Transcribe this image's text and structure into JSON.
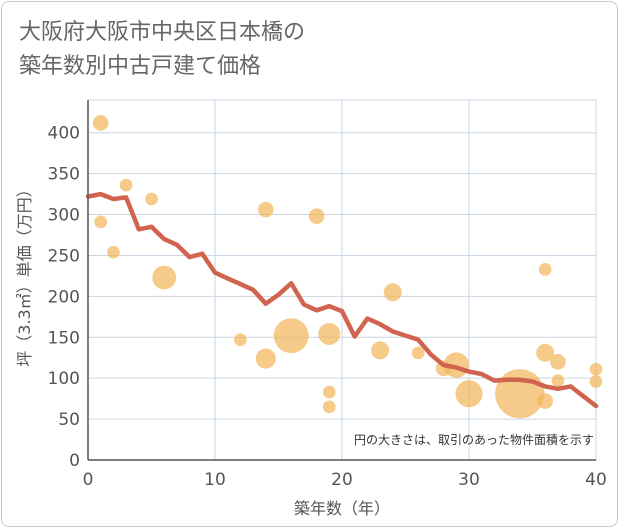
{
  "title_line1": "大阪府大阪市中央区日本橋の",
  "title_line2": "築年数別中古戸建て価格",
  "chart_data": {
    "type": "scatter",
    "title": "大阪府大阪市中央区日本橋の築年数別中古戸建て価格",
    "xlabel": "築年数（年）",
    "ylabel": "坪（3.3㎡）単価（万円）",
    "xlim": [
      0,
      40
    ],
    "ylim": [
      0,
      440
    ],
    "xticks": [
      0,
      10,
      20,
      30,
      40
    ],
    "yticks": [
      0,
      50,
      100,
      150,
      200,
      250,
      300,
      350,
      400
    ],
    "grid": true,
    "note": "円の大きさは、取引のあった物件面積を示す",
    "colors": {
      "bubble": "#f2b55c",
      "line": "#d0644f",
      "grid": "#c9d6e3",
      "axis": "#555555"
    },
    "bubbles": [
      {
        "x": 1,
        "y": 412,
        "size": 3
      },
      {
        "x": 1,
        "y": 291,
        "size": 2
      },
      {
        "x": 2,
        "y": 254,
        "size": 2
      },
      {
        "x": 3,
        "y": 336,
        "size": 2
      },
      {
        "x": 5,
        "y": 319,
        "size": 2
      },
      {
        "x": 6,
        "y": 223,
        "size": 7
      },
      {
        "x": 12,
        "y": 147,
        "size": 2
      },
      {
        "x": 14,
        "y": 306,
        "size": 3
      },
      {
        "x": 14,
        "y": 124,
        "size": 5
      },
      {
        "x": 16,
        "y": 152,
        "size": 15
      },
      {
        "x": 18,
        "y": 298,
        "size": 3
      },
      {
        "x": 19,
        "y": 154,
        "size": 6
      },
      {
        "x": 19,
        "y": 83,
        "size": 2
      },
      {
        "x": 19,
        "y": 65,
        "size": 2
      },
      {
        "x": 23,
        "y": 134,
        "size": 4
      },
      {
        "x": 24,
        "y": 205,
        "size": 4
      },
      {
        "x": 26,
        "y": 131,
        "size": 2
      },
      {
        "x": 28,
        "y": 112,
        "size": 3
      },
      {
        "x": 29,
        "y": 116,
        "size": 8
      },
      {
        "x": 30,
        "y": 81,
        "size": 9
      },
      {
        "x": 34,
        "y": 81,
        "size": 30
      },
      {
        "x": 36,
        "y": 233,
        "size": 2
      },
      {
        "x": 36,
        "y": 131,
        "size": 4
      },
      {
        "x": 36,
        "y": 72,
        "size": 3
      },
      {
        "x": 37,
        "y": 120,
        "size": 3
      },
      {
        "x": 37,
        "y": 97,
        "size": 2
      },
      {
        "x": 40,
        "y": 111,
        "size": 2
      },
      {
        "x": 40,
        "y": 96,
        "size": 2
      }
    ],
    "line": {
      "x": [
        0,
        1,
        2,
        3,
        4,
        5,
        6,
        7,
        8,
        9,
        10,
        11,
        12,
        13,
        14,
        15,
        16,
        17,
        18,
        19,
        20,
        21,
        22,
        23,
        24,
        25,
        26,
        27,
        28,
        29,
        30,
        31,
        32,
        33,
        34,
        35,
        36,
        37,
        38,
        39,
        40
      ],
      "y": [
        322,
        325,
        319,
        321,
        282,
        285,
        270,
        263,
        248,
        252,
        229,
        222,
        215,
        208,
        191,
        202,
        216,
        190,
        183,
        188,
        182,
        151,
        173,
        166,
        157,
        152,
        147,
        129,
        116,
        113,
        108,
        105,
        97,
        98,
        98,
        96,
        90,
        87,
        90,
        78,
        66
      ]
    }
  }
}
